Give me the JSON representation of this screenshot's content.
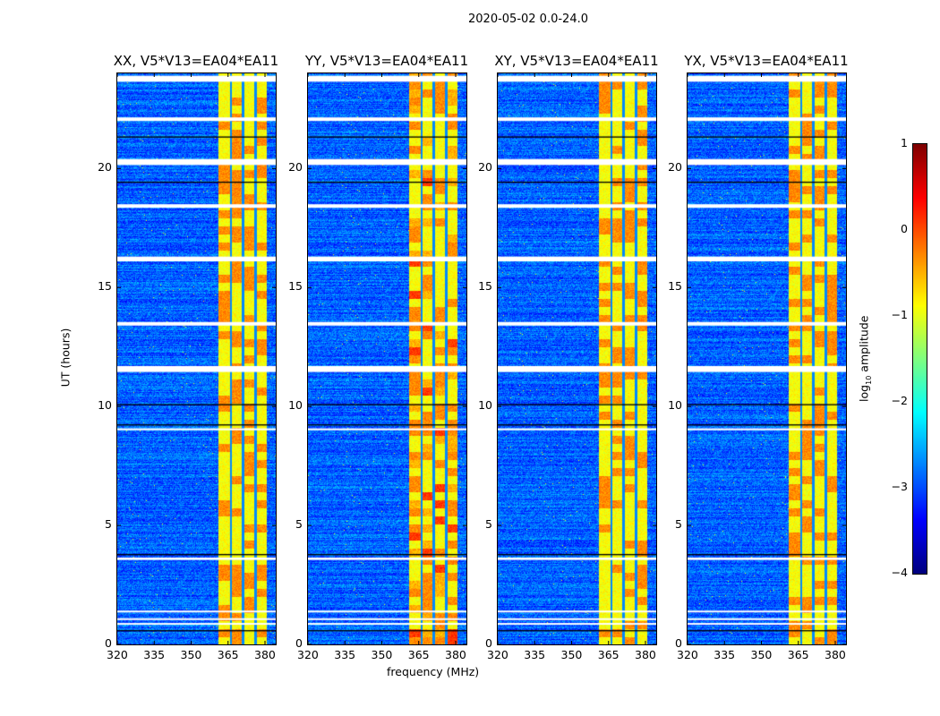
{
  "title": "2020-05-02 0.0-24.0",
  "chart_data": {
    "type": "heatmap",
    "title": "2020-05-02 0.0-24.0",
    "xlabel": "frequency (MHz)",
    "ylabel": "UT (hours)",
    "xlim": [
      320,
      384.5
    ],
    "ylim": [
      0,
      24
    ],
    "xticks": [
      "320",
      "335",
      "350",
      "365",
      "380"
    ],
    "xtick_values": [
      320,
      335,
      350,
      365,
      380
    ],
    "yticks": [
      "0",
      "5",
      "10",
      "15",
      "20"
    ],
    "ytick_values": [
      0,
      5,
      10,
      15,
      20
    ],
    "panels": [
      {
        "title": "XX, V5*V13=EA04*EA11"
      },
      {
        "title": "YY, V5*V13=EA04*EA11"
      },
      {
        "title": "XY, V5*V13=EA04*EA11"
      },
      {
        "title": "YX, V5*V13=EA04*EA11"
      }
    ],
    "rfi_band_mhz": [
      361,
      380.5
    ],
    "band_gaps_mhz": [
      366,
      371,
      376
    ],
    "flagged_hours": [
      [
        23.65,
        23.9
      ],
      [
        22.0,
        22.15
      ],
      [
        20.15,
        20.4
      ],
      [
        18.35,
        18.5
      ],
      [
        16.1,
        16.3
      ],
      [
        13.4,
        13.55
      ],
      [
        11.45,
        11.7
      ],
      [
        9.0,
        9.08
      ],
      [
        3.55,
        3.65
      ],
      [
        1.35,
        1.42
      ],
      [
        1.05,
        1.1
      ],
      [
        0.85,
        0.9
      ]
    ],
    "dark_hours": [
      [
        21.3,
        21.35
      ],
      [
        19.4,
        19.45
      ],
      [
        10.05,
        10.1
      ],
      [
        9.2,
        9.25
      ],
      [
        3.75,
        3.8
      ],
      [
        0.55,
        0.6
      ]
    ],
    "colorbar": {
      "label": "log10 amplitude",
      "label_main": "log",
      "label_sub": "10",
      "label_rest": " amplitude",
      "range": [
        -4,
        1
      ],
      "ticks": [
        "1",
        "0",
        "−1",
        "−2",
        "−3",
        "−4"
      ],
      "tick_values": [
        1,
        0,
        -1,
        -2,
        -3,
        -4
      ],
      "colormap": "jet"
    }
  }
}
